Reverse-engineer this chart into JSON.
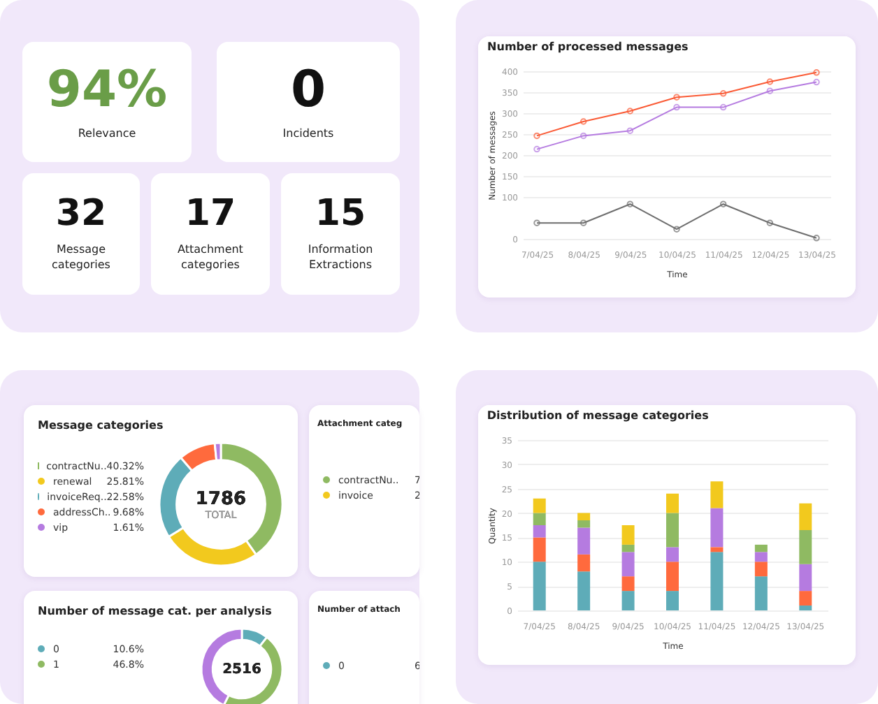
{
  "chart_data": [
    {
      "type": "other",
      "annotations": [
        "94%",
        "Relevance",
        "0",
        "Incidents",
        "32",
        "Message categories",
        "17",
        "Attachment categories",
        "15",
        "Information Extractions"
      ]
    },
    {
      "type": "line",
      "title": "Number of processed messages",
      "xlabel": "Time",
      "ylabel": "Number of messages",
      "categories": [
        "7/04/25",
        "8/04/25",
        "9/04/25",
        "10/04/25",
        "11/04/25",
        "12/04/25",
        "13/04/25"
      ],
      "series": [
        {
          "color": "#fa5a35",
          "values": [
            246,
            280,
            305,
            338,
            347,
            375,
            397
          ]
        },
        {
          "color": "#b57be0",
          "values": [
            214,
            246,
            258,
            314,
            314,
            353,
            374
          ]
        },
        {
          "color": "#6e6e6e",
          "values": [
            38,
            38,
            83,
            23,
            83,
            38,
            2
          ]
        }
      ],
      "ylim": [
        0,
        400
      ],
      "yticks": [
        0,
        100,
        150,
        200,
        250,
        300,
        350,
        400
      ],
      "grid": "y",
      "marker": "circle"
    },
    {
      "type": "donut",
      "title": "Message categories",
      "categories": [
        "contractNu..",
        "renewal",
        "invoiceReq..",
        "addressCh..",
        "vip"
      ],
      "values": [
        40.32,
        25.81,
        22.58,
        9.68,
        1.61
      ],
      "colors": [
        "#8fba62",
        "#f2c91e",
        "#5eacb8",
        "#ff6a3d",
        "#b57be0"
      ],
      "value_labels": [
        "40.32%",
        "25.81%",
        "22.58%",
        "9.68%",
        "1.61%"
      ],
      "annotations": [
        "1786",
        "TOTAL"
      ],
      "legend": "left"
    },
    {
      "type": "other",
      "title": "Attachment categ",
      "categories": [
        "contractNu..",
        "invoice"
      ],
      "value_labels": [
        "7",
        "2"
      ],
      "colors": [
        "#8fba62",
        "#f2c91e"
      ]
    },
    {
      "type": "bar",
      "title": "Distribution of message categories",
      "xlabel": "Time",
      "ylabel": "Quantity",
      "categories": [
        "7/04/25",
        "8/04/25",
        "9/04/25",
        "10/04/25",
        "11/04/25",
        "12/04/25",
        "13/04/25"
      ],
      "stacked": true,
      "series": [
        {
          "color": "#5eacb8",
          "values": [
            10,
            8,
            4,
            4,
            12,
            7,
            1
          ]
        },
        {
          "color": "#ff6a3d",
          "values": [
            5,
            3.5,
            3,
            6,
            1,
            3,
            3
          ]
        },
        {
          "color": "#b57be0",
          "values": [
            2.5,
            5.5,
            5,
            3,
            8,
            2,
            5.5
          ]
        },
        {
          "color": "#8fba62",
          "values": [
            2.5,
            1.5,
            1.5,
            7,
            0,
            1.5,
            7
          ]
        },
        {
          "color": "#f2c91e",
          "values": [
            3,
            1.5,
            4,
            4,
            5.5,
            0,
            5.5
          ]
        }
      ],
      "ylim": [
        0,
        35
      ],
      "yticks": [
        0,
        5,
        10,
        15,
        20,
        25,
        30,
        35
      ],
      "grid": "y"
    },
    {
      "type": "donut",
      "title": "Number of message cat. per analysis",
      "categories": [
        "0",
        "1",
        null
      ],
      "values": [
        10.6,
        46.8,
        42.6
      ],
      "colors": [
        "#5eacb8",
        "#8fba62",
        "#b57be0"
      ],
      "value_labels": [
        "10.6%",
        "46.8%",
        null
      ],
      "annotations": [
        "2516"
      ],
      "legend": "left"
    },
    {
      "type": "other",
      "title": "Number of attach",
      "categories": [
        "0"
      ],
      "value_labels": [
        "6"
      ],
      "colors": [
        "#5eacb8"
      ]
    }
  ]
}
